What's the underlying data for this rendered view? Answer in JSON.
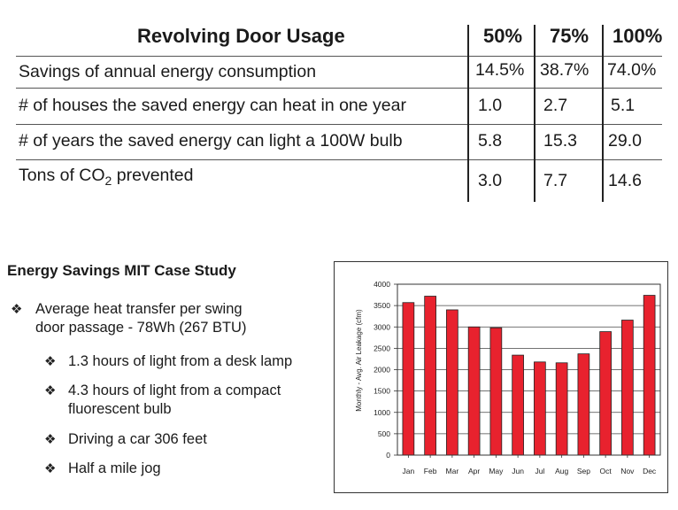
{
  "table": {
    "header": {
      "label": "Revolving Door Usage",
      "columns": [
        "50%",
        "75%",
        "100%"
      ]
    },
    "rows": [
      {
        "label": "Savings of annual energy consumption",
        "label_sub": "",
        "label_tail": "",
        "values": [
          "14.5%",
          "38.7%",
          "74.0%"
        ]
      },
      {
        "label": "# of houses the saved energy can heat in one year",
        "label_sub": "",
        "label_tail": "",
        "values": [
          "1.0",
          "2.7",
          "5.1"
        ]
      },
      {
        "label": "# of years the saved energy can light a 100W bulb",
        "label_sub": "",
        "label_tail": "",
        "values": [
          "5.8",
          "15.3",
          "29.0"
        ]
      },
      {
        "label": "Tons of CO",
        "label_sub": "2",
        "label_tail": " prevented",
        "values": [
          "3.0",
          "7.7",
          "14.6"
        ]
      }
    ]
  },
  "case_study": {
    "title": "Energy Savings MIT Case Study",
    "bullets": [
      {
        "text_line1": "Average heat transfer per swing",
        "text_line2": "door passage - 78Wh (267 BTU)"
      }
    ],
    "sub_bullets": [
      {
        "text_line1": "1.3 hours of light from a desk lamp",
        "text_line2": ""
      },
      {
        "text_line1": "4.3 hours of light from a compact",
        "text_line2": "fluorescent bulb"
      },
      {
        "text_line1": "Driving a car 306 feet",
        "text_line2": ""
      },
      {
        "text_line1": "Half a mile jog",
        "text_line2": ""
      }
    ],
    "bullet_icon": "four-diamond-icon"
  },
  "chart_data": {
    "type": "bar",
    "categories": [
      "Jan",
      "Feb",
      "Mar",
      "Apr",
      "May",
      "Jun",
      "Jul",
      "Aug",
      "Sep",
      "Oct",
      "Nov",
      "Dec"
    ],
    "values": [
      3570,
      3720,
      3400,
      3000,
      2980,
      2340,
      2180,
      2160,
      2370,
      2890,
      3160,
      3740
    ],
    "ylabel": "Monthly - Avg. Air Leakage (cfm)",
    "xlabel": "",
    "ylim": [
      0,
      4000
    ],
    "yticks": [
      0,
      500,
      1000,
      1500,
      2000,
      2500,
      3000,
      3500,
      4000
    ],
    "grid": true,
    "bar_color": "#e8222e"
  }
}
